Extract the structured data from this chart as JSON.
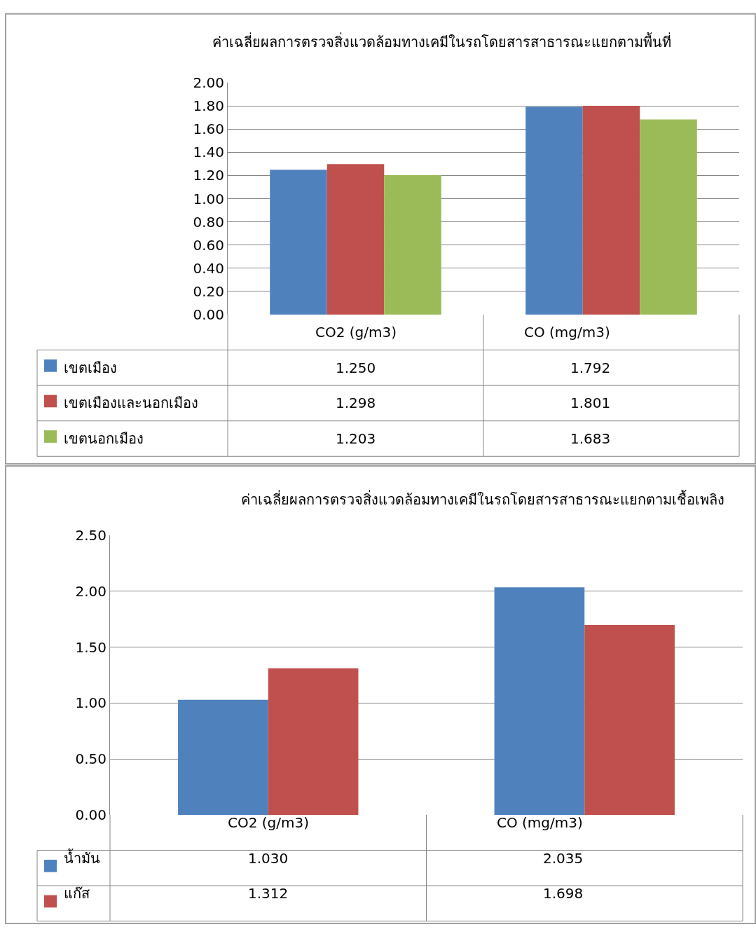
{
  "chart_data": [
    {
      "type": "bar",
      "title": "ค่าเฉลี่ยผลการตรวจสิ่งแวดล้อมทางเคมีในรถโดยสารสาธารณะแยกตามพื้นที่",
      "categories": [
        "CO2 (g/m3)",
        "CO (mg/m3)"
      ],
      "series": [
        {
          "name": "เขตเมือง",
          "color": "#4f81bd",
          "values": [
            1.25,
            1.792
          ],
          "value_labels": [
            "1.250",
            "1.792"
          ]
        },
        {
          "name": "เขตเมืองและนอกเมือง",
          "color": "#c0504d",
          "values": [
            1.298,
            1.801
          ],
          "value_labels": [
            "1.298",
            "1.801"
          ]
        },
        {
          "name": "เขตนอกเมือง",
          "color": "#9bbb59",
          "values": [
            1.203,
            1.683
          ],
          "value_labels": [
            "1.203",
            "1.683"
          ]
        }
      ],
      "ylim": [
        0,
        2
      ],
      "yticks": [
        "0.00",
        "0.20",
        "0.40",
        "0.60",
        "0.80",
        "1.00",
        "1.20",
        "1.40",
        "1.60",
        "1.80",
        "2.00"
      ],
      "grid": "y",
      "legend": "bottom left"
    },
    {
      "type": "bar",
      "title": "ค่าเฉลี่ยผลการตรวจสิ่งแวดล้อมทางเคมีในรถโดยสารสาธารณะแยกตามเชื้อเพลิง",
      "categories": [
        "CO2 (g/m3)",
        "CO (mg/m3)"
      ],
      "series": [
        {
          "name": "น้ำมัน",
          "color": "#4f81bd",
          "values": [
            1.03,
            2.035
          ],
          "value_labels": [
            "1.030",
            "2.035"
          ]
        },
        {
          "name": "แก๊ส",
          "color": "#c0504d",
          "values": [
            1.312,
            1.698
          ],
          "value_labels": [
            "1.312",
            "1.698"
          ]
        }
      ],
      "ylim": [
        0,
        2.5
      ],
      "yticks": [
        "0.00",
        "0.50",
        "1.00",
        "1.50",
        "2.00",
        "2.50"
      ],
      "grid": "y",
      "legend": "bottom left"
    }
  ]
}
